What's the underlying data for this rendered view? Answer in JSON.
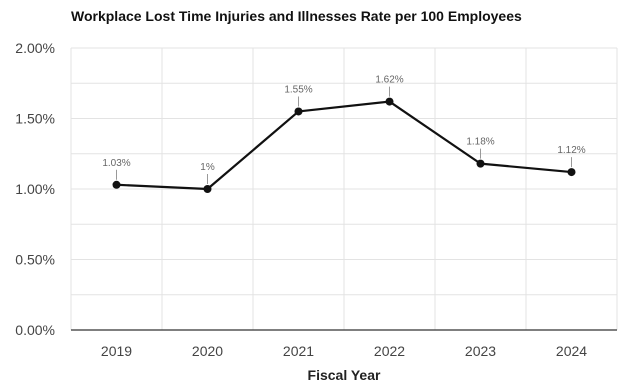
{
  "chart_data": {
    "type": "line",
    "title": "Workplace Lost Time Injuries and Illnesses Rate per 100 Employees",
    "xlabel": "Fiscal Year",
    "ylabel": "",
    "categories": [
      "2019",
      "2020",
      "2021",
      "2022",
      "2023",
      "2024"
    ],
    "series": [
      {
        "values": [
          1.03,
          1.0,
          1.55,
          1.62,
          1.18,
          1.12
        ],
        "data_labels": [
          "1.03%",
          "1%",
          "1.55%",
          "1.62%",
          "1.18%",
          "1.12%"
        ]
      }
    ],
    "ylim": [
      0,
      2
    ],
    "y_ticks": [
      0,
      0.5,
      1,
      1.5,
      2
    ],
    "y_tick_labels": [
      "0.00%",
      "0.50%",
      "1.00%",
      "1.50%",
      "2.00%"
    ],
    "grid": true,
    "legend": "none"
  },
  "colors": {
    "line": "#111111",
    "marker": "#111111",
    "grid": "#e3e3e3",
    "axis": "#333333",
    "tick_text": "#444444",
    "data_label": "#666666",
    "title": "#111111"
  }
}
